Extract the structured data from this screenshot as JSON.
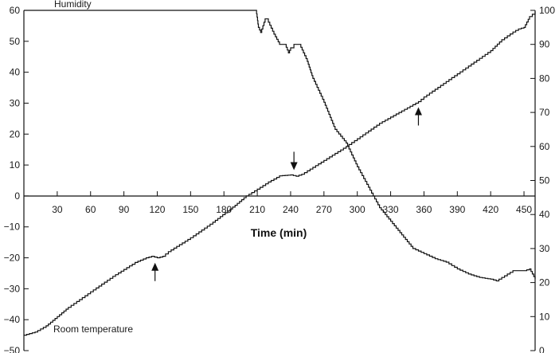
{
  "chart_data": {
    "type": "line",
    "title": "",
    "xlabel": "Time (min)",
    "xlim": [
      0,
      460
    ],
    "x_ticks": [
      30,
      60,
      90,
      120,
      150,
      180,
      210,
      240,
      270,
      300,
      330,
      360,
      390,
      420,
      450
    ],
    "left_axis": {
      "ylim": [
        -50,
        60
      ],
      "ticks": [
        -50,
        -40,
        -30,
        -20,
        -10,
        0,
        10,
        20,
        30,
        40,
        50,
        60
      ]
    },
    "right_axis": {
      "ylim": [
        0,
        100
      ],
      "ticks": [
        0,
        10,
        20,
        30,
        40,
        50,
        60,
        70,
        80,
        90,
        100
      ]
    },
    "grid": false,
    "series": [
      {
        "name": "Room temperature",
        "axis": "left",
        "color": "#111111",
        "x": [
          0,
          10,
          20,
          30,
          40,
          60,
          80,
          100,
          110,
          115,
          120,
          125,
          130,
          150,
          170,
          190,
          200,
          210,
          220,
          230,
          240,
          245,
          250,
          270,
          290,
          300,
          320,
          340,
          355,
          360,
          380,
          400,
          420,
          430,
          440,
          445,
          450,
          455,
          460
        ],
        "y": [
          -45,
          -44,
          -42,
          -39,
          -36,
          -31,
          -26,
          -21.5,
          -20,
          -19.5,
          -20,
          -19.5,
          -18,
          -13.5,
          -8.5,
          -3,
          0,
          2.2,
          4.5,
          6.5,
          6.8,
          6.4,
          7,
          11.5,
          16,
          18.5,
          23.5,
          27.5,
          30.5,
          32,
          37,
          42,
          47,
          50.5,
          53,
          54,
          54.5,
          58,
          59.5
        ]
      },
      {
        "name": "Humidity",
        "axis": "right",
        "color": "#111111",
        "x": [
          0,
          100,
          200,
          209,
          211,
          213,
          217,
          220,
          225,
          230,
          235,
          238,
          240,
          243,
          248,
          255,
          260,
          270,
          280,
          290,
          300,
          310,
          320,
          330,
          340,
          350,
          360,
          370,
          380,
          390,
          400,
          410,
          420,
          425,
          430,
          440,
          450,
          455,
          460
        ],
        "y": [
          100,
          100,
          100,
          100,
          95,
          93.5,
          97.5,
          96.5,
          93,
          90,
          90,
          87.5,
          89,
          90,
          90,
          85,
          80,
          73,
          65,
          61,
          54,
          48,
          42,
          38,
          34,
          30,
          28.5,
          27,
          26,
          24,
          22.5,
          21.5,
          21,
          20.5,
          21.5,
          23.5,
          23.5,
          24,
          21
        ]
      }
    ],
    "annotations": [
      {
        "type": "arrow",
        "series": "Room temperature",
        "x": 118,
        "direction": "up"
      },
      {
        "type": "arrow",
        "series": "Room temperature",
        "x": 243,
        "direction": "down"
      },
      {
        "type": "arrow",
        "series": "Room temperature",
        "x": 355,
        "direction": "up"
      }
    ]
  }
}
